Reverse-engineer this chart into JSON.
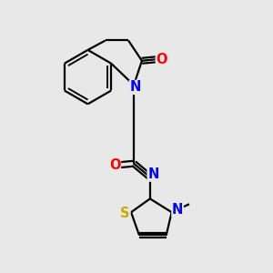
{
  "bg_color": "#e8e8e8",
  "bond_color": "#000000",
  "N_color": "#0000ff",
  "O_color": "#ff0000",
  "S_color": "#ccaa00",
  "line_width": 1.6,
  "font_size": 10.5,
  "fig_size": [
    3.0,
    3.0
  ],
  "dpi": 100,
  "xlim": [
    0,
    10
  ],
  "ylim": [
    0,
    10
  ]
}
